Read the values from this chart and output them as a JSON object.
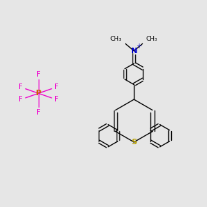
{
  "background_color": "#e6e6e6",
  "bond_color": "#000000",
  "N_color": "#0000cc",
  "S_color": "#b8a000",
  "P_color": "#cc6600",
  "F_color": "#ee00cc",
  "figsize": [
    3.0,
    3.0
  ],
  "dpi": 100,
  "xlim": [
    0,
    10
  ],
  "ylim": [
    0,
    10
  ]
}
